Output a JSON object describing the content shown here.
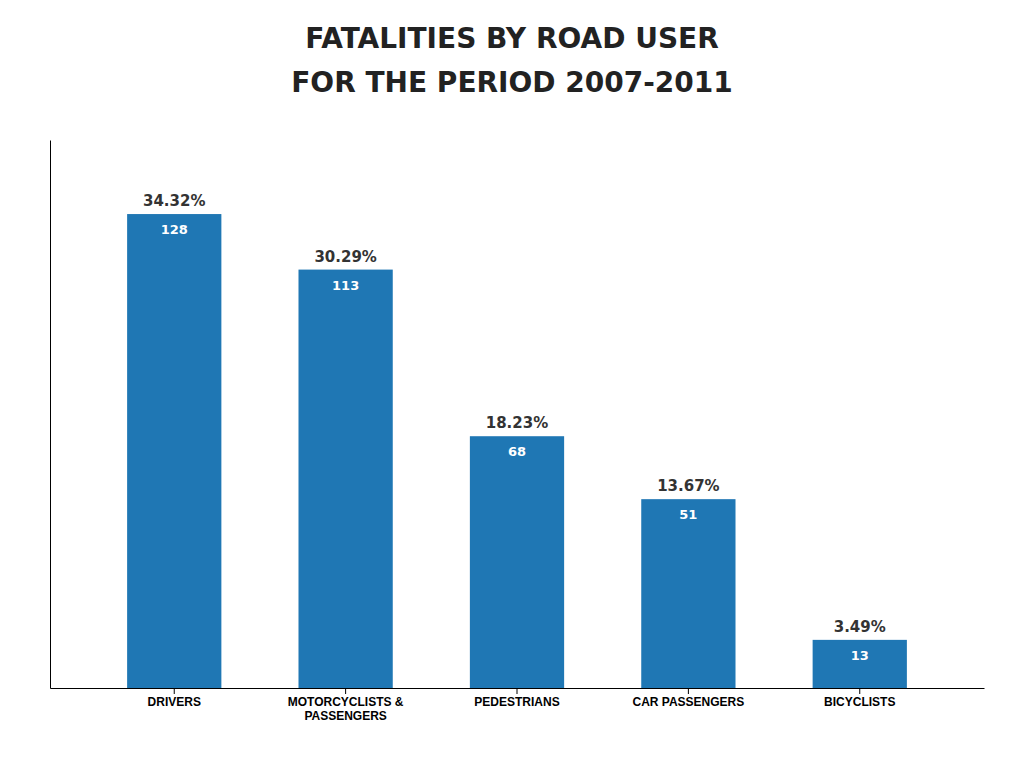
{
  "chart_data": {
    "type": "bar",
    "title": "FATALITIES BY ROAD USER",
    "subtitle": "FOR THE PERIOD 2007-2011",
    "categories": [
      "DRIVERS",
      "MOTORCYCLISTS &\nPASSENGERS",
      "PEDESTRIANS",
      "CAR PASSENGERS",
      "BICYCLISTS"
    ],
    "values": [
      128,
      113,
      68,
      51,
      13
    ],
    "shares": [
      34.32,
      30.29,
      18.23,
      13.67,
      3.49
    ],
    "share_labels": [
      "34.32%",
      "30.29%",
      "18.23%",
      "13.67%",
      "3.49%"
    ],
    "ylim": [
      0,
      148
    ],
    "data_labels": true,
    "tick_labels": "x",
    "grid": false
  }
}
